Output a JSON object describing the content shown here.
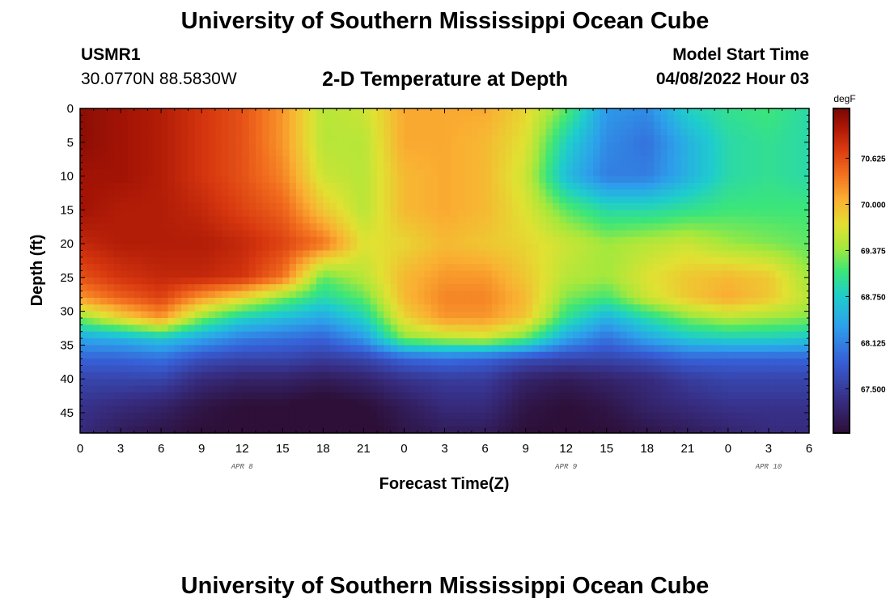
{
  "header": {
    "title": "University of Southern Mississippi Ocean Cube",
    "station_id": "USMR1",
    "coords": "30.0770N  88.5830W",
    "model_label": "Model Start Time",
    "model_time": "04/08/2022 Hour 03"
  },
  "footer": {
    "title": "University of Southern Mississippi Ocean Cube"
  },
  "chart_data": {
    "type": "heatmap",
    "title": "2-D Temperature at Depth",
    "xlabel": "Forecast Time(Z)",
    "ylabel": "Depth (ft)",
    "x_tick_labels": [
      "0",
      "3",
      "6",
      "9",
      "12",
      "15",
      "18",
      "21",
      "0",
      "3",
      "6",
      "9",
      "12",
      "15",
      "18",
      "21",
      "0",
      "3",
      "6"
    ],
    "x_hours": [
      0,
      3,
      6,
      9,
      12,
      15,
      18,
      21,
      24,
      27,
      30,
      33,
      36,
      39,
      42,
      45,
      48,
      51,
      54
    ],
    "x_range_hours": [
      0,
      54
    ],
    "date_labels": [
      {
        "text": "APR 8",
        "hour": 12
      },
      {
        "text": "APR 9",
        "hour": 36
      },
      {
        "text": "APR 10",
        "hour": 51
      }
    ],
    "y_ticks": [
      0,
      5,
      10,
      15,
      20,
      25,
      30,
      35,
      40,
      45
    ],
    "y_range": [
      0,
      48
    ],
    "y_inverted": true,
    "colorbar": {
      "unit": "degF",
      "ticks": [
        "70.625",
        "70.000",
        "69.375",
        "68.750",
        "68.125",
        "67.500"
      ],
      "tick_values": [
        70.625,
        70.0,
        69.375,
        68.75,
        68.125,
        67.5
      ],
      "range": [
        66.9,
        71.3
      ]
    },
    "grid_note": "Approximate temperature (degF) read from colors; rows = depth_ft, cols = hour_values",
    "depths_ft": [
      0,
      5,
      10,
      15,
      20,
      25,
      28,
      31,
      34,
      37,
      40,
      44,
      48
    ],
    "hours": [
      0,
      3,
      6,
      9,
      12,
      15,
      18,
      21,
      24,
      27,
      30,
      33,
      36,
      39,
      42,
      45,
      48,
      51,
      54
    ],
    "temps": [
      [
        71.2,
        71.1,
        71.0,
        70.8,
        70.6,
        70.2,
        69.5,
        69.6,
        70.1,
        70.1,
        70.1,
        69.8,
        69.2,
        68.3,
        68.2,
        68.8,
        69.0,
        69.1,
        68.9
      ],
      [
        71.2,
        71.1,
        71.0,
        70.8,
        70.6,
        70.2,
        69.5,
        69.5,
        70.1,
        70.1,
        70.0,
        69.7,
        68.8,
        68.2,
        68.0,
        68.5,
        68.9,
        69.0,
        68.9
      ],
      [
        71.1,
        71.1,
        71.0,
        70.8,
        70.6,
        70.3,
        69.6,
        69.5,
        70.0,
        70.1,
        70.0,
        69.6,
        68.6,
        68.1,
        68.1,
        68.5,
        68.9,
        69.0,
        68.9
      ],
      [
        71.1,
        71.0,
        71.0,
        70.9,
        70.7,
        70.5,
        69.9,
        69.5,
        70.0,
        70.1,
        70.0,
        69.7,
        69.2,
        68.9,
        68.9,
        69.0,
        69.1,
        69.1,
        69.1
      ],
      [
        70.9,
        71.0,
        71.0,
        71.0,
        70.9,
        70.7,
        70.4,
        69.7,
        69.8,
        70.0,
        69.9,
        69.8,
        69.6,
        69.4,
        69.5,
        69.6,
        69.4,
        69.3,
        69.2
      ],
      [
        70.6,
        70.8,
        70.9,
        70.9,
        70.8,
        70.4,
        69.2,
        69.5,
        70.0,
        70.2,
        70.2,
        69.9,
        69.5,
        69.4,
        69.7,
        69.9,
        70.0,
        69.9,
        69.4
      ],
      [
        70.2,
        70.5,
        70.7,
        70.2,
        69.8,
        69.3,
        68.9,
        69.2,
        70.0,
        70.3,
        70.3,
        70.0,
        69.3,
        69.1,
        69.6,
        69.9,
        70.1,
        69.9,
        69.5
      ],
      [
        69.3,
        69.8,
        70.2,
        69.3,
        68.8,
        68.6,
        68.4,
        68.8,
        69.8,
        70.2,
        70.2,
        69.9,
        69.0,
        68.5,
        68.9,
        69.3,
        69.5,
        69.4,
        69.3
      ],
      [
        68.4,
        68.5,
        68.7,
        68.4,
        68.1,
        68.0,
        67.9,
        68.3,
        69.3,
        69.5,
        69.6,
        69.2,
        68.4,
        68.0,
        68.4,
        68.7,
        68.8,
        68.8,
        68.7
      ],
      [
        67.9,
        67.9,
        68.0,
        67.7,
        67.6,
        67.6,
        67.5,
        67.6,
        67.9,
        68.0,
        67.9,
        67.7,
        67.6,
        67.6,
        67.7,
        67.9,
        67.9,
        67.9,
        67.9
      ],
      [
        67.6,
        67.6,
        67.6,
        67.3,
        67.2,
        67.2,
        67.1,
        67.2,
        67.4,
        67.5,
        67.5,
        67.2,
        67.1,
        67.2,
        67.3,
        67.5,
        67.6,
        67.6,
        67.6
      ],
      [
        67.4,
        67.3,
        67.2,
        67.0,
        66.9,
        66.9,
        66.8,
        66.9,
        67.1,
        67.3,
        67.3,
        67.0,
        66.9,
        67.0,
        67.2,
        67.3,
        67.4,
        67.4,
        67.4
      ],
      [
        67.3,
        67.1,
        67.0,
        66.9,
        66.9,
        66.8,
        66.7,
        66.8,
        67.0,
        67.1,
        67.1,
        66.9,
        66.9,
        66.9,
        67.0,
        67.1,
        67.2,
        67.3,
        67.3
      ]
    ]
  }
}
